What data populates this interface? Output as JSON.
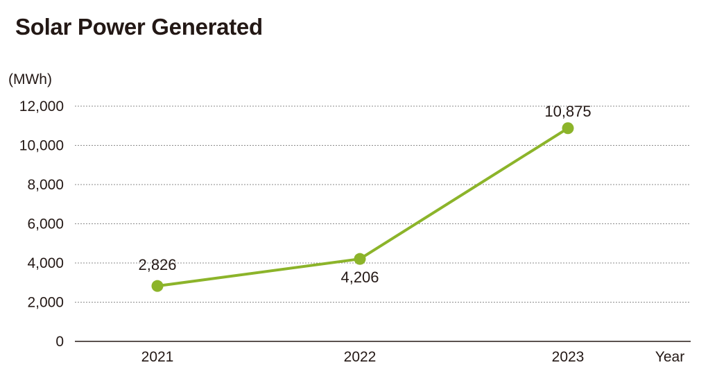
{
  "chart_data": {
    "type": "line",
    "title": "Solar Power Generated",
    "ylabel": "(MWh)",
    "xlabel": "Year",
    "categories": [
      "2021",
      "2022",
      "2023"
    ],
    "series": [
      {
        "values": [
          2826,
          4206,
          10875
        ],
        "labels": [
          "2,826",
          "4,206",
          "10,875"
        ],
        "color": "#8cb42a"
      }
    ],
    "ylim": [
      0,
      12000
    ],
    "yticks": [
      0,
      2000,
      4000,
      6000,
      8000,
      10000,
      12000
    ],
    "ytick_labels": [
      "0",
      "2,000",
      "4,000",
      "6,000",
      "8,000",
      "10,000",
      "12,000"
    ],
    "grid": true,
    "grid_color": "#8a8a8a",
    "axis_color": "#231815"
  }
}
